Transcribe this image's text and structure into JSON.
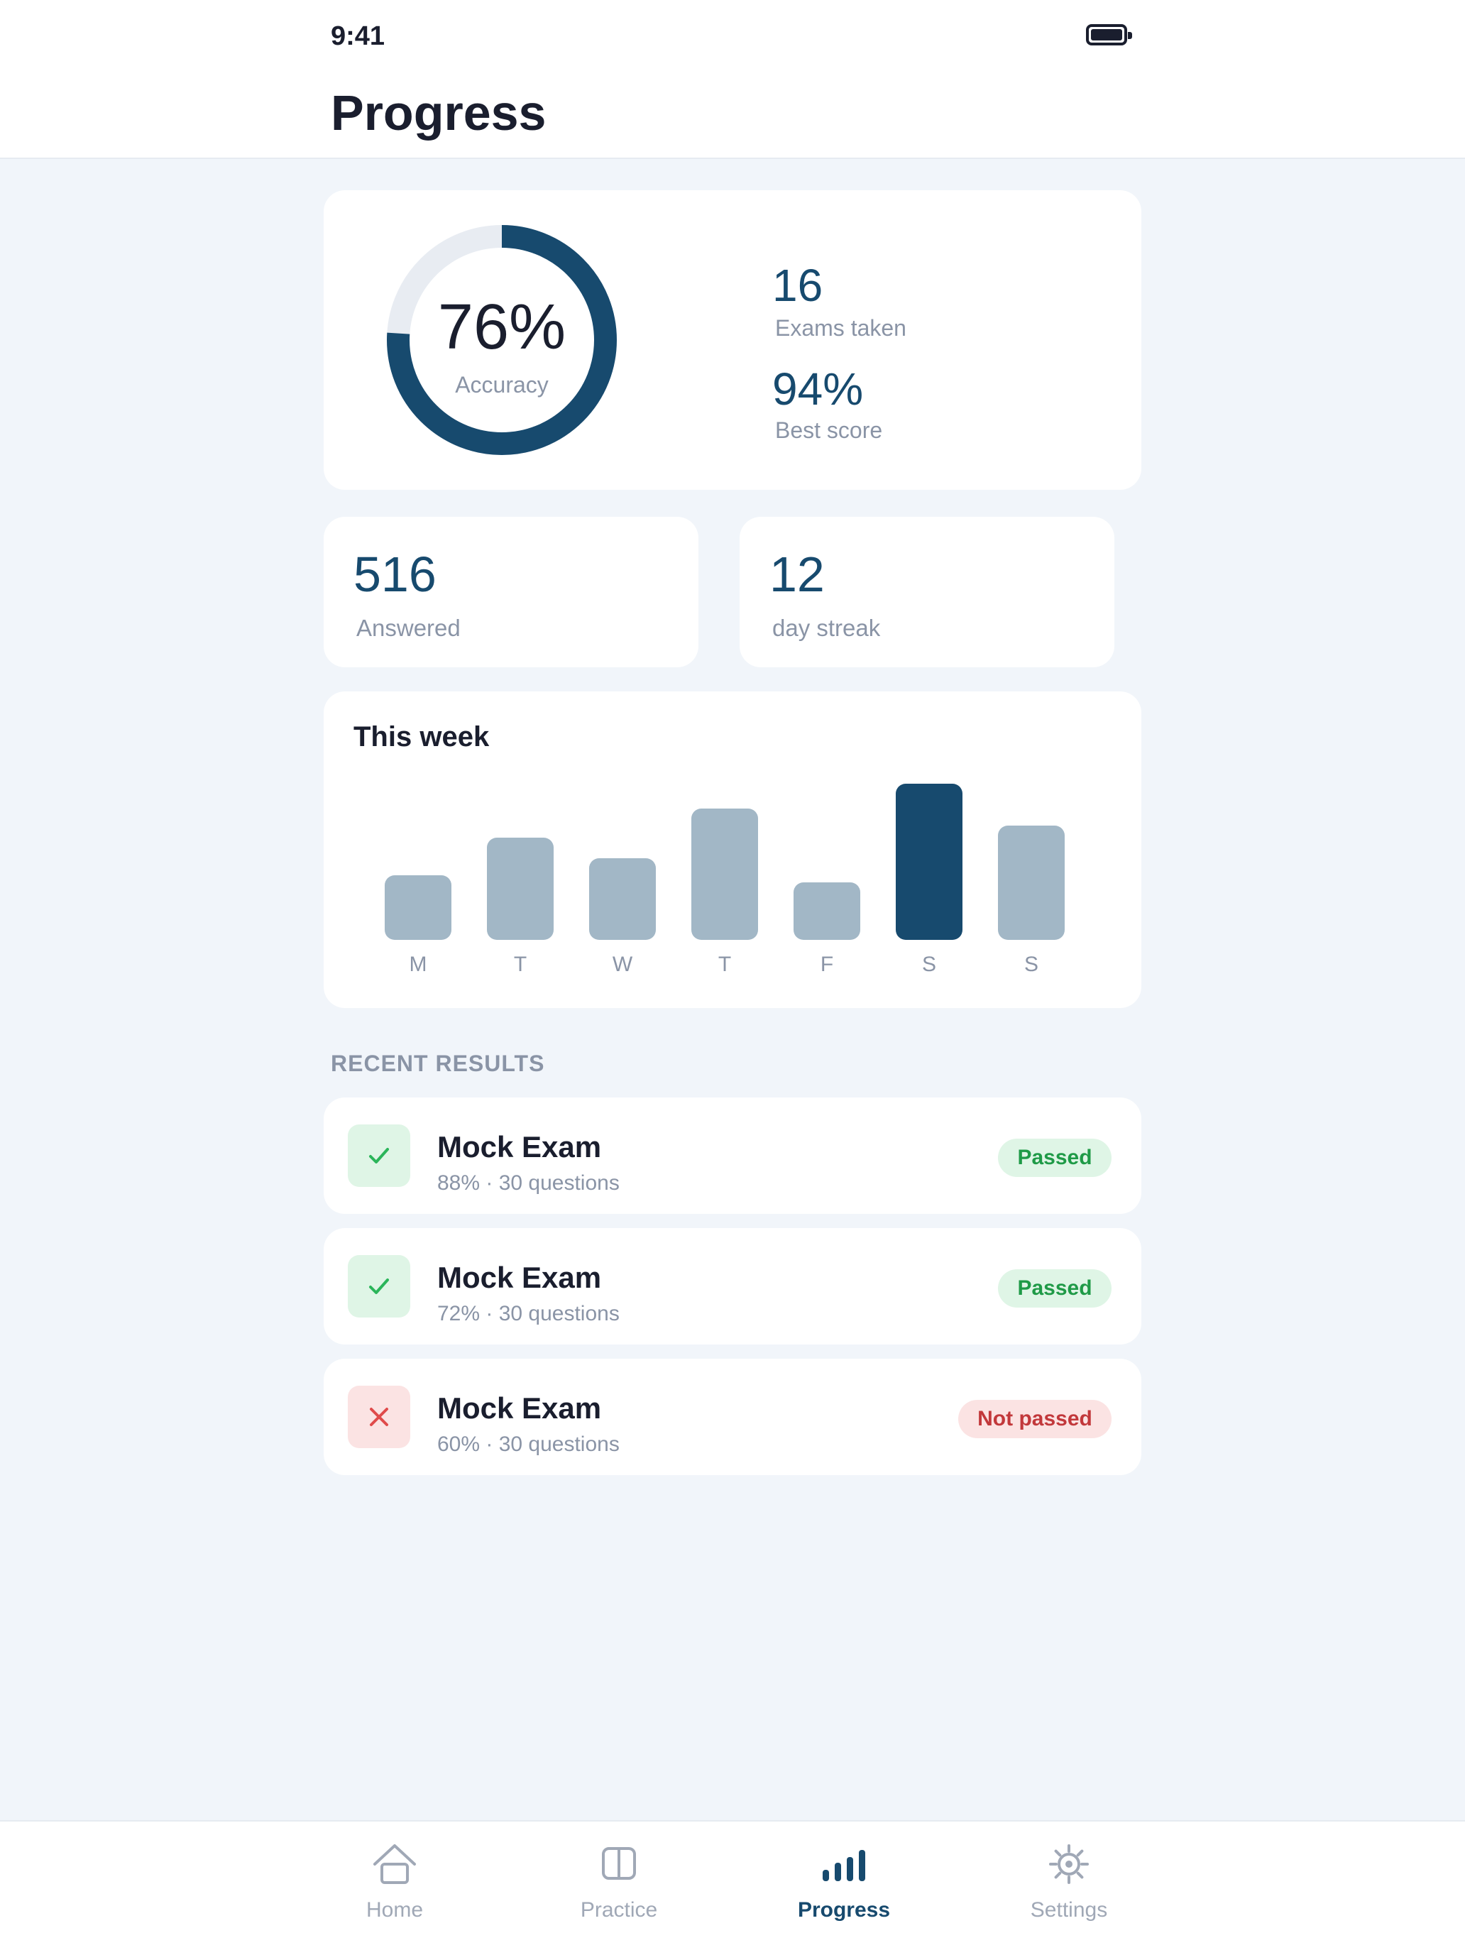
{
  "status": {
    "time": "9:41"
  },
  "header": {
    "title": "Progress"
  },
  "summary": {
    "accuracy": {
      "value": "76%",
      "label": "Accuracy",
      "fraction": 0.76
    },
    "exams_taken": {
      "value": "16",
      "label": "Exams taken"
    },
    "best_score": {
      "value": "94%",
      "label": "Best score"
    }
  },
  "answered": {
    "value": "516",
    "label": "Answered"
  },
  "streak": {
    "value": "12",
    "label": "day streak"
  },
  "week": {
    "title": "This week",
    "days": [
      "M",
      "T",
      "W",
      "T",
      "F",
      "S",
      "S"
    ],
    "values": [
      42,
      66,
      53,
      85,
      37,
      101,
      74
    ],
    "highlight_index": 5
  },
  "recent": {
    "section_label": "RECENT RESULTS",
    "items": [
      {
        "title": "Mock Exam",
        "subtitle": "88% · 30 questions",
        "status": "Passed",
        "icon": "check-icon",
        "passed": true
      },
      {
        "title": "Mock Exam",
        "subtitle": "72% · 30 questions",
        "status": "Passed",
        "icon": "check-icon",
        "passed": true
      },
      {
        "title": "Mock Exam",
        "subtitle": "60% · 30 questions",
        "status": "Not passed",
        "icon": "close-icon",
        "passed": false
      }
    ]
  },
  "tabs": [
    {
      "label": "Home",
      "icon": "home-icon"
    },
    {
      "label": "Practice",
      "icon": "book-icon"
    },
    {
      "label": "Progress",
      "icon": "bar-chart-icon",
      "active": true
    },
    {
      "label": "Settings",
      "icon": "gear-icon"
    }
  ],
  "colors": {
    "accent": "#174a6e",
    "bar_inactive": "#a2b7c6",
    "ring_track": "#e8ecf2",
    "pass_bg": "#dff5e6",
    "pass_text": "#1f9a47",
    "fail_bg": "#fbe3e3",
    "fail_text": "#c2383b"
  }
}
